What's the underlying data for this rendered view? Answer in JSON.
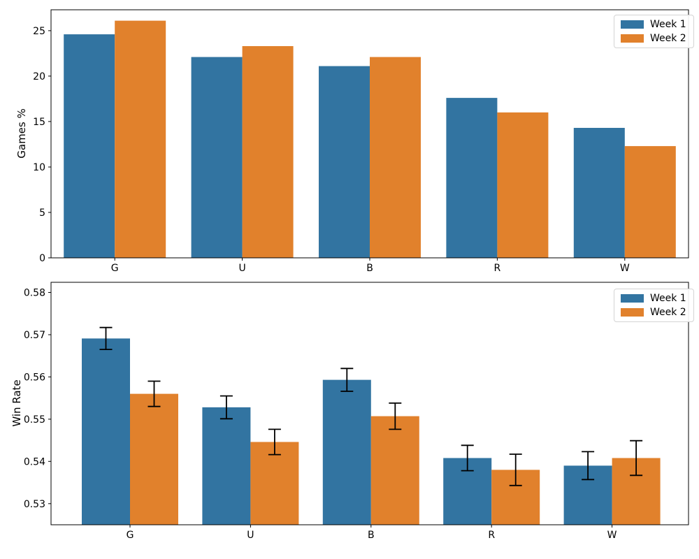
{
  "figure": {
    "background": "#ffffff",
    "week1_color": "#3274a1",
    "week2_color": "#e1812c",
    "text_color": "#000000",
    "legend_entries": [
      "Week 1",
      "Week 2"
    ]
  },
  "chart_data": [
    {
      "type": "bar",
      "title": "",
      "xlabel": "",
      "ylabel": "Games %",
      "categories": [
        "G",
        "U",
        "B",
        "R",
        "W"
      ],
      "series": [
        {
          "name": "Week 1",
          "color": "#3274a1",
          "values": [
            24.6,
            22.1,
            21.1,
            17.6,
            14.3
          ]
        },
        {
          "name": "Week 2",
          "color": "#e1812c",
          "values": [
            26.1,
            23.3,
            22.1,
            16.0,
            12.3
          ]
        }
      ],
      "ylim": [
        0,
        27.3
      ],
      "ytick_values": [
        0,
        5,
        10,
        15,
        20,
        25
      ],
      "ytick_labels": [
        "0",
        "5",
        "10",
        "15",
        "20",
        "25"
      ],
      "grid": false,
      "legend_position": "upper right"
    },
    {
      "type": "bar",
      "title": "",
      "xlabel": "",
      "ylabel": "Win Rate",
      "categories": [
        "G",
        "U",
        "B",
        "R",
        "W"
      ],
      "series": [
        {
          "name": "Week 1",
          "color": "#3274a1",
          "values": [
            0.5691,
            0.5528,
            0.5593,
            0.5408,
            0.539
          ],
          "errors": [
            0.0026,
            0.0027,
            0.0027,
            0.003,
            0.0033
          ]
        },
        {
          "name": "Week 2",
          "color": "#e1812c",
          "values": [
            0.556,
            0.5446,
            0.5507,
            0.538,
            0.5408
          ],
          "errors": [
            0.003,
            0.003,
            0.0031,
            0.0037,
            0.0041
          ]
        }
      ],
      "ylim": [
        0.525,
        0.5824
      ],
      "ytick_values": [
        0.53,
        0.54,
        0.55,
        0.56,
        0.57,
        0.58
      ],
      "ytick_labels": [
        "0.53",
        "0.54",
        "0.55",
        "0.56",
        "0.57",
        "0.58"
      ],
      "grid": false,
      "legend_position": "upper right"
    }
  ]
}
